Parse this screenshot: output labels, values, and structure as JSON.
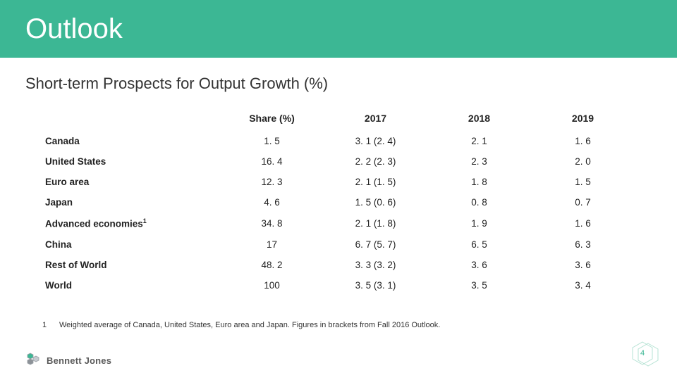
{
  "header": {
    "title": "Outlook",
    "band_color": "#3cb794"
  },
  "subtitle": "Short-term Prospects for Output Growth (%)",
  "table": {
    "columns": [
      "",
      "Share (%)",
      "2017",
      "2018",
      "2019"
    ],
    "rows": [
      {
        "label": "Canada",
        "sup": "",
        "cells": [
          "1. 5",
          "3. 1 (2. 4)",
          "2. 1",
          "1. 6"
        ]
      },
      {
        "label": "United States",
        "sup": "",
        "cells": [
          "16. 4",
          "2. 2 (2. 3)",
          "2. 3",
          "2. 0"
        ]
      },
      {
        "label": "Euro area",
        "sup": "",
        "cells": [
          "12. 3",
          "2. 1 (1. 5)",
          "1. 8",
          "1. 5"
        ]
      },
      {
        "label": "Japan",
        "sup": "",
        "cells": [
          "4. 6",
          "1. 5 (0. 6)",
          "0. 8",
          "0. 7"
        ]
      },
      {
        "label": "Advanced economies",
        "sup": "1",
        "cells": [
          "34. 8",
          "2. 1 (1. 8)",
          "1. 9",
          "1. 6"
        ]
      },
      {
        "label": "China",
        "sup": "",
        "cells": [
          "17",
          "6. 7 (5. 7)",
          "6. 5",
          "6. 3"
        ]
      },
      {
        "label": "Rest of World",
        "sup": "",
        "cells": [
          "48. 2",
          "3. 3 (3. 2)",
          "3. 6",
          "3. 6"
        ]
      },
      {
        "label": "World",
        "sup": "",
        "cells": [
          "100",
          "3. 5 (3. 1)",
          "3. 5",
          "3. 4"
        ]
      }
    ]
  },
  "footnote": {
    "num": "1",
    "text": "Weighted average of Canada, United States, Euro area and Japan. Figures in brackets from Fall 2016 Outlook."
  },
  "logo": {
    "text": "Bennett Jones",
    "hex_fill": "#3cb794",
    "hex_stroke": "#9aa0a6"
  },
  "page_number": "4",
  "page_hex_stroke": "#b6e3d4"
}
